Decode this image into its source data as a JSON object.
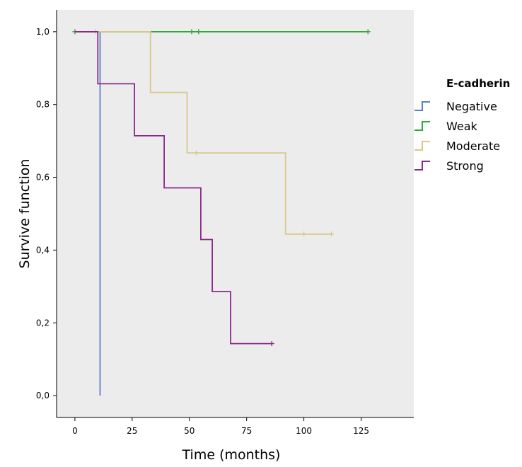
{
  "chart_data": {
    "type": "line",
    "title": "",
    "xlabel": "Time (months)",
    "ylabel": "Survive function",
    "xlim": [
      -8,
      148
    ],
    "ylim": [
      -0.06,
      1.06
    ],
    "x_ticks": [
      0,
      25,
      50,
      75,
      100,
      125
    ],
    "x_tick_labels": [
      "0",
      "25",
      "50",
      "75",
      "100",
      "125"
    ],
    "y_ticks": [
      0.0,
      0.2,
      0.4,
      0.6,
      0.8,
      1.0
    ],
    "y_tick_labels": [
      "0,0",
      "0,2",
      "0,4",
      "0,6",
      "0,8",
      "1,0"
    ],
    "grid": false,
    "legend_title": "E-cadherin",
    "legend_position": "right",
    "background_color": "#ececec",
    "series": [
      {
        "name": "Negative",
        "color": "#5a7fc6",
        "step_points": [
          [
            0,
            1.0
          ],
          [
            11,
            1.0
          ],
          [
            11,
            0.0
          ]
        ],
        "censored": []
      },
      {
        "name": "Weak",
        "color": "#2ea836",
        "step_points": [
          [
            0,
            1.0
          ],
          [
            128,
            1.0
          ]
        ],
        "censored": [
          [
            0,
            1.0
          ],
          [
            51,
            1.0
          ],
          [
            54,
            1.0
          ],
          [
            128,
            1.0
          ]
        ]
      },
      {
        "name": "Moderate",
        "color": "#d8c88a",
        "step_points": [
          [
            0,
            1.0
          ],
          [
            33,
            1.0
          ],
          [
            33,
            0.833
          ],
          [
            49,
            0.833
          ],
          [
            49,
            0.667
          ],
          [
            92,
            0.667
          ],
          [
            92,
            0.444
          ],
          [
            112,
            0.444
          ]
        ],
        "censored": [
          [
            9,
            1.0
          ],
          [
            53,
            0.667
          ],
          [
            100,
            0.444
          ],
          [
            112,
            0.444
          ]
        ]
      },
      {
        "name": "Strong",
        "color": "#8a2a8c",
        "step_points": [
          [
            0,
            1.0
          ],
          [
            10,
            1.0
          ],
          [
            10,
            0.857
          ],
          [
            26,
            0.857
          ],
          [
            26,
            0.714
          ],
          [
            39,
            0.714
          ],
          [
            39,
            0.571
          ],
          [
            55,
            0.571
          ],
          [
            55,
            0.429
          ],
          [
            60,
            0.429
          ],
          [
            60,
            0.286
          ],
          [
            68,
            0.286
          ],
          [
            68,
            0.143
          ],
          [
            86,
            0.143
          ]
        ],
        "censored": [
          [
            86,
            0.143
          ]
        ]
      }
    ]
  }
}
